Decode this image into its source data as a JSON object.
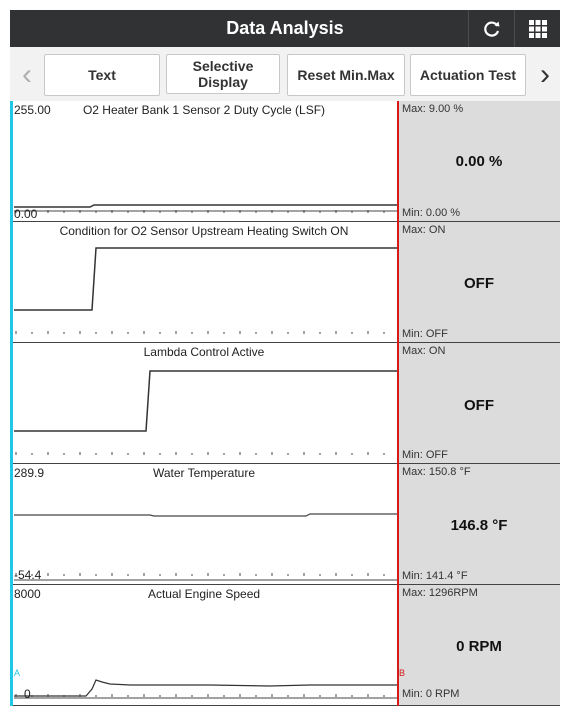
{
  "header": {
    "title": "Data Analysis",
    "refresh_icon": "refresh-icon",
    "grid_icon": "grid-icon"
  },
  "toolbar": {
    "prev_arrow": "‹",
    "next_arrow": "›",
    "buttons": [
      "Text",
      "Selective Display",
      "Reset Min.Max",
      "Actuation Test"
    ]
  },
  "cursors": {
    "a": "A",
    "b": "B"
  },
  "panels": [
    {
      "title": "O2 Heater Bank 1 Sensor 2 Duty Cycle (LSF)",
      "y_top": "255.00",
      "y_bottom": "0.00",
      "value": "0.00 %",
      "max": "Max: 9.00 %",
      "min": "Min: 0.00 %"
    },
    {
      "title": "Condition for O2 Sensor Upstream Heating Switch ON",
      "y_top": "",
      "y_bottom": "",
      "value": "OFF",
      "max": "Max: ON",
      "min": "Min: OFF"
    },
    {
      "title": "Lambda Control Active",
      "y_top": "",
      "y_bottom": "",
      "value": "OFF",
      "max": "Max: ON",
      "min": "Min: OFF"
    },
    {
      "title": "Water Temperature",
      "y_top": "289.9",
      "y_bottom": "-54.4",
      "value": "146.8 °F",
      "max": "Max: 150.8 °F",
      "min": "Min: 141.4 °F"
    },
    {
      "title": "Actual Engine Speed",
      "y_top": "8000",
      "y_bottom": "0",
      "value": "0 RPM",
      "max": "Max: 1296RPM",
      "min": "Min: 0 RPM"
    }
  ],
  "colors": {
    "cursor_a": "#1ec8e6",
    "cursor_b": "#d61a1a",
    "title_bar": "#303234",
    "value_panel": "#dcdcdc"
  }
}
